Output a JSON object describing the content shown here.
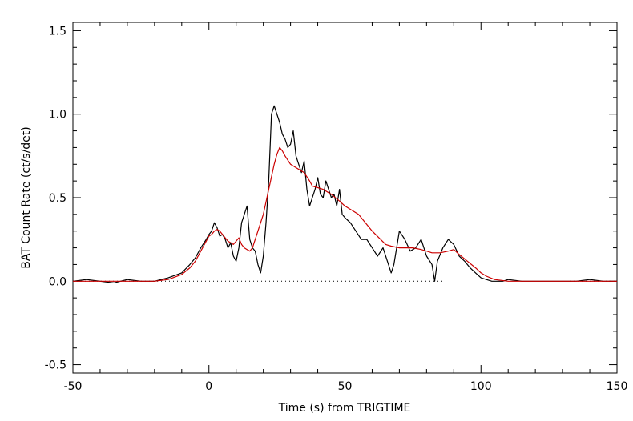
{
  "chart_data": {
    "type": "line",
    "title": "",
    "xlabel": "Time (s) from TRIGTIME",
    "ylabel": "BAT Count Rate (ct/s/det)",
    "xlim": [
      -50,
      150
    ],
    "ylim": [
      -0.55,
      1.55
    ],
    "x_ticks": [
      -50,
      0,
      50,
      100,
      150
    ],
    "x_tick_labels": [
      "-50",
      "0",
      "50",
      "100",
      "150"
    ],
    "y_ticks": [
      -0.5,
      0.0,
      0.5,
      1.0,
      1.5
    ],
    "y_tick_labels": [
      "-0.5",
      "0.0",
      "0.5",
      "1.0",
      "1.5"
    ],
    "grid": false,
    "legend": "none",
    "zero_line": {
      "y": 0.0,
      "style": "dotted",
      "x_range": [
        -50,
        150
      ]
    },
    "series": [
      {
        "style": "noisy light curve",
        "color": "#000000",
        "x": [
          -50,
          -45,
          -40,
          -35,
          -30,
          -25,
          -20,
          -15,
          -10,
          -7,
          -5,
          -3,
          -1,
          0,
          1,
          2,
          3,
          4,
          5,
          6,
          7,
          8,
          9,
          10,
          11,
          12,
          13,
          14,
          15,
          16,
          17,
          18,
          19,
          20,
          21,
          22,
          23,
          24,
          25,
          26,
          27,
          28,
          29,
          30,
          31,
          32,
          33,
          34,
          35,
          36,
          37,
          38,
          39,
          40,
          41,
          42,
          43,
          44,
          45,
          46,
          47,
          48,
          49,
          50,
          52,
          54,
          56,
          58,
          60,
          62,
          64,
          66,
          67,
          68,
          69,
          70,
          72,
          74,
          76,
          78,
          80,
          82,
          83,
          84,
          86,
          88,
          90,
          92,
          94,
          96,
          98,
          100,
          102,
          104,
          106,
          108,
          110,
          115,
          120,
          125,
          130,
          135,
          140,
          145,
          150
        ],
        "values": [
          0.0,
          0.01,
          0.0,
          -0.01,
          0.01,
          0.0,
          0.0,
          0.02,
          0.05,
          0.1,
          0.14,
          0.2,
          0.25,
          0.28,
          0.3,
          0.35,
          0.32,
          0.27,
          0.28,
          0.25,
          0.2,
          0.23,
          0.15,
          0.12,
          0.2,
          0.35,
          0.4,
          0.45,
          0.25,
          0.2,
          0.18,
          0.1,
          0.05,
          0.15,
          0.35,
          0.6,
          1.0,
          1.05,
          1.0,
          0.95,
          0.88,
          0.85,
          0.8,
          0.82,
          0.9,
          0.75,
          0.7,
          0.65,
          0.72,
          0.55,
          0.45,
          0.5,
          0.55,
          0.62,
          0.52,
          0.5,
          0.6,
          0.55,
          0.5,
          0.52,
          0.45,
          0.55,
          0.4,
          0.38,
          0.35,
          0.3,
          0.25,
          0.25,
          0.2,
          0.15,
          0.2,
          0.1,
          0.05,
          0.1,
          0.2,
          0.3,
          0.25,
          0.18,
          0.2,
          0.25,
          0.15,
          0.1,
          0.0,
          0.12,
          0.2,
          0.25,
          0.22,
          0.15,
          0.12,
          0.08,
          0.05,
          0.02,
          0.01,
          0.0,
          0.0,
          0.0,
          0.01,
          0.0,
          0.0,
          0.0,
          0.0,
          0.0,
          0.01,
          0.0,
          0.0
        ]
      },
      {
        "style": "smoothed",
        "color": "#cc0000",
        "x": [
          -50,
          -40,
          -30,
          -20,
          -15,
          -10,
          -7,
          -5,
          -3,
          -1,
          0,
          1,
          2,
          3,
          4,
          5,
          6,
          7,
          8,
          9,
          10,
          11,
          12,
          13,
          14,
          15,
          16,
          17,
          18,
          20,
          22,
          24,
          25,
          26,
          27,
          28,
          30,
          32,
          35,
          37,
          38,
          40,
          42,
          45,
          48,
          50,
          55,
          60,
          65,
          67,
          70,
          72,
          75,
          78,
          80,
          82,
          85,
          88,
          90,
          92,
          95,
          98,
          100,
          102,
          105,
          110,
          120,
          130,
          140,
          150
        ],
        "values": [
          0.0,
          0.0,
          0.0,
          0.0,
          0.01,
          0.04,
          0.08,
          0.12,
          0.18,
          0.24,
          0.27,
          0.28,
          0.3,
          0.31,
          0.3,
          0.28,
          0.26,
          0.24,
          0.23,
          0.22,
          0.24,
          0.26,
          0.22,
          0.2,
          0.19,
          0.18,
          0.2,
          0.25,
          0.3,
          0.4,
          0.55,
          0.7,
          0.76,
          0.8,
          0.78,
          0.75,
          0.7,
          0.68,
          0.65,
          0.6,
          0.57,
          0.56,
          0.55,
          0.52,
          0.48,
          0.45,
          0.4,
          0.3,
          0.22,
          0.21,
          0.2,
          0.2,
          0.2,
          0.19,
          0.18,
          0.17,
          0.17,
          0.18,
          0.19,
          0.16,
          0.12,
          0.08,
          0.05,
          0.03,
          0.01,
          0.0,
          0.0,
          0.0,
          0.0,
          0.0
        ]
      }
    ]
  }
}
